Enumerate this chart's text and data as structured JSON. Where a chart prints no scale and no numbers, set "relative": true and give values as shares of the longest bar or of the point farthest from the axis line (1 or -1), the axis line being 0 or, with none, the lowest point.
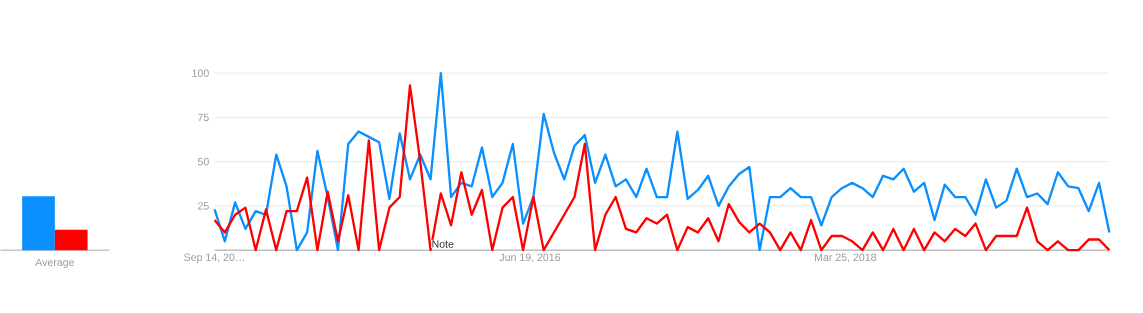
{
  "chart_data": [
    {
      "type": "bar",
      "relative": true,
      "categories": [
        "Average"
      ],
      "series": [
        {
          "color": "#0a8fff",
          "values": [
            1
          ]
        },
        {
          "color": "#ff0000",
          "values": [
            0.38
          ]
        }
      ]
    },
    {
      "type": "line",
      "grid": "y",
      "ylim": [
        0,
        100
      ],
      "yticks": [
        {
          "value": 0,
          "label": null
        },
        25,
        50,
        75,
        100
      ],
      "xlim": [
        "2014-09-14",
        "2019-09-15"
      ],
      "xticks": [
        {
          "value": "2014-09-14",
          "label": "Sep 14, 20…"
        },
        {
          "value": "2016-06-19",
          "label": "Jun 19, 2016"
        },
        {
          "value": "2018-03-25",
          "label": "Mar 25, 2018"
        }
      ],
      "x": [
        "2014-09-14",
        "2014-10-05",
        "2014-10-26",
        "2014-11-16",
        "2014-12-07",
        "2014-12-28",
        "2015-01-18",
        "2015-02-08",
        "2015-03-01",
        "2015-03-22",
        "2015-04-12",
        "2015-05-03",
        "2015-05-24",
        "2015-06-14",
        "2015-07-05",
        "2015-07-26",
        "2015-08-16",
        "2015-09-06",
        "2015-09-27",
        "2015-10-18",
        "2015-11-08",
        "2015-11-29",
        "2015-12-20",
        "2016-01-10",
        "2016-01-31",
        "2016-02-21",
        "2016-03-13",
        "2016-04-03",
        "2016-04-24",
        "2016-05-15",
        "2016-06-05",
        "2016-06-26",
        "2016-07-17",
        "2016-08-07",
        "2016-08-28",
        "2016-09-18",
        "2016-10-09",
        "2016-10-30",
        "2016-11-20",
        "2016-12-11",
        "2017-01-01",
        "2017-01-22",
        "2017-02-12",
        "2017-03-05",
        "2017-03-26",
        "2017-04-16",
        "2017-05-07",
        "2017-05-28",
        "2017-06-18",
        "2017-07-09",
        "2017-07-30",
        "2017-08-20",
        "2017-09-10",
        "2017-10-01",
        "2017-10-22",
        "2017-11-12",
        "2017-12-03",
        "2017-12-24",
        "2018-01-14",
        "2018-02-04",
        "2018-02-25",
        "2018-03-18",
        "2018-04-08",
        "2018-04-29",
        "2018-05-20",
        "2018-06-10",
        "2018-07-01",
        "2018-07-22",
        "2018-08-12",
        "2018-09-02",
        "2018-09-23",
        "2018-10-14",
        "2018-11-04",
        "2018-11-25",
        "2018-12-16",
        "2019-01-06",
        "2019-01-27",
        "2019-02-17",
        "2019-03-10",
        "2019-03-31",
        "2019-04-21",
        "2019-05-12",
        "2019-06-02",
        "2019-06-23",
        "2019-07-14",
        "2019-08-04",
        "2019-08-25",
        "2019-09-15"
      ],
      "series": [
        {
          "color": "#0a8fff",
          "values": [
            23,
            5,
            27,
            12,
            22,
            20,
            54,
            36,
            0,
            10,
            56,
            30,
            0,
            60,
            67,
            64,
            61,
            29,
            66,
            40,
            54,
            40,
            100,
            30,
            38,
            36,
            58,
            30,
            38,
            60,
            15,
            30,
            77,
            55,
            40,
            59,
            65,
            38,
            54,
            36,
            40,
            30,
            46,
            30,
            30,
            67,
            29,
            34,
            42,
            25,
            36,
            43,
            47,
            0,
            30,
            30,
            35,
            30,
            30,
            14,
            30,
            35,
            38,
            35,
            30,
            42,
            40,
            46,
            33,
            38,
            17,
            37,
            30,
            30,
            20,
            40,
            24,
            28,
            46,
            30,
            32,
            26,
            44,
            36,
            35,
            22,
            38,
            10
          ]
        },
        {
          "color": "#ff0000",
          "values": [
            17,
            10,
            20,
            24,
            0,
            23,
            0,
            22,
            22,
            41,
            0,
            33,
            5,
            31,
            0,
            62,
            0,
            24,
            30,
            93,
            50,
            0,
            32,
            14,
            44,
            20,
            34,
            0,
            24,
            30,
            0,
            30,
            0,
            10,
            20,
            30,
            60,
            0,
            20,
            30,
            12,
            10,
            18,
            15,
            20,
            0,
            13,
            10,
            18,
            5,
            26,
            16,
            10,
            15,
            10,
            0,
            10,
            0,
            17,
            0,
            8,
            8,
            5,
            0,
            10,
            0,
            12,
            0,
            12,
            0,
            10,
            5,
            12,
            8,
            15,
            0,
            8,
            8,
            8,
            24,
            5,
            0,
            5,
            0,
            0,
            6,
            6,
            0
          ]
        }
      ],
      "annotations": [
        "Note"
      ]
    }
  ]
}
